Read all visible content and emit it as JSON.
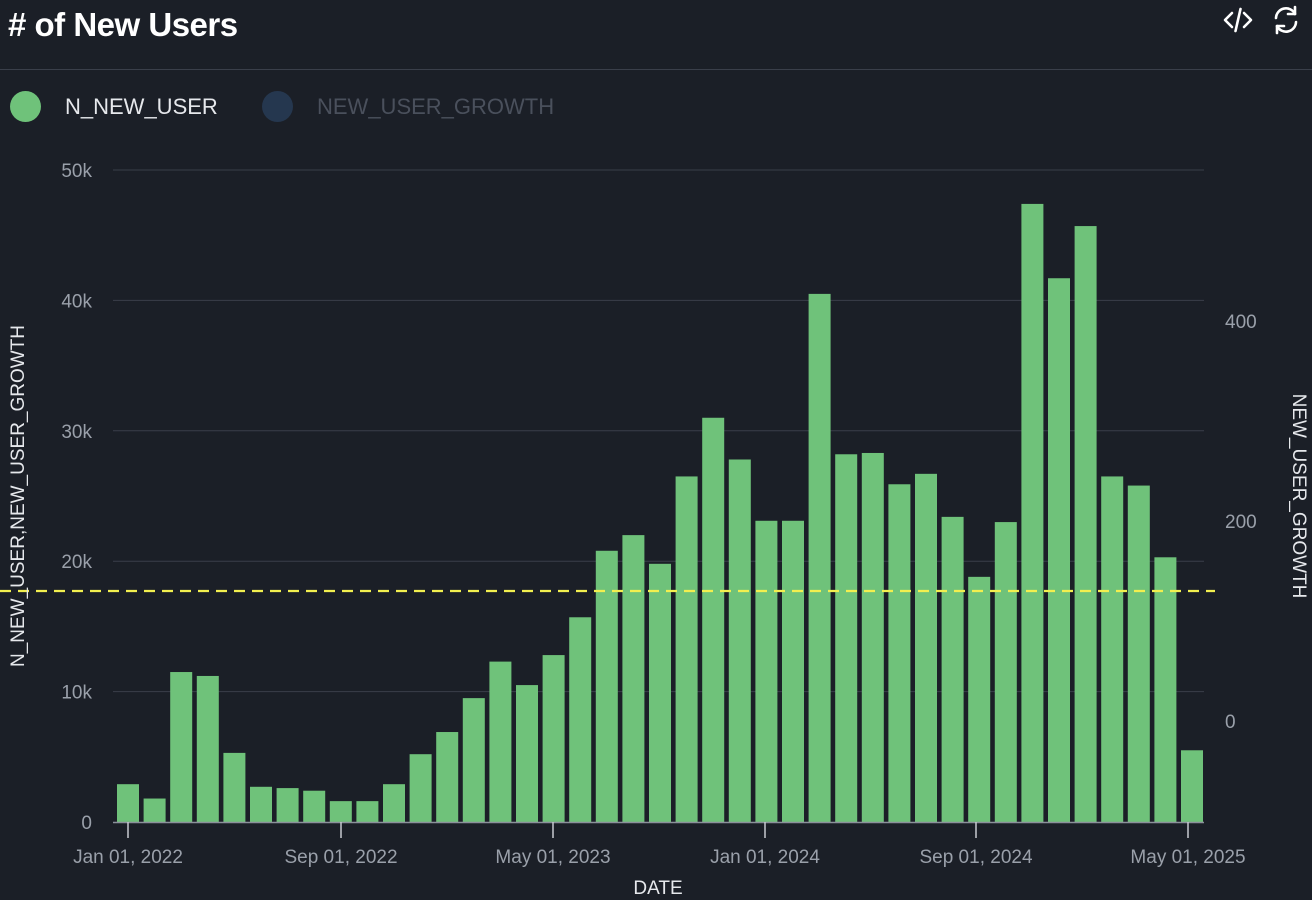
{
  "header": {
    "title": "# of New Users",
    "code_icon": "code-icon",
    "refresh_icon": "refresh-icon"
  },
  "legend": [
    {
      "label": "N_NEW_USER",
      "color": "#6fc27a",
      "text_color": "#e6e8ec"
    },
    {
      "label": "NEW_USER_GROWTH",
      "color": "#25374f",
      "text_color": "#4a505c"
    }
  ],
  "colors": {
    "background": "#1b1f27",
    "bar": "#6fc27a",
    "grid": "#3a3f4a",
    "reference_line": "#f2ef4f"
  },
  "chart_data": {
    "type": "bar",
    "xlabel": "DATE",
    "ylabel_left": "N_NEW_USER,NEW_USER_GROWTH",
    "ylabel_right": "NEW_USER_GROWTH",
    "left_axis": {
      "ylim": [
        0,
        50000
      ],
      "ticks": [
        0,
        10000,
        20000,
        30000,
        40000,
        50000
      ],
      "tick_labels": [
        "0",
        "10k",
        "20k",
        "30k",
        "40k",
        "50k"
      ]
    },
    "right_axis": {
      "ylim": [
        -101,
        551
      ],
      "ticks": [
        0,
        200,
        400
      ],
      "tick_labels": [
        "0",
        "200",
        "400"
      ]
    },
    "x_ticks": [
      "Jan 01, 2022",
      "Sep 01, 2022",
      "May 01, 2023",
      "Jan 01, 2024",
      "Sep 01, 2024",
      "May 01, 2025"
    ],
    "grid": "horizontal",
    "reference_line": {
      "axis": "right",
      "value": 130,
      "style": "dashed"
    },
    "series": [
      {
        "name": "N_NEW_USER",
        "axis": "left",
        "x": [
          "2022-01",
          "2022-02",
          "2022-03",
          "2022-04",
          "2022-05",
          "2022-06",
          "2022-07",
          "2022-08",
          "2022-09",
          "2022-10",
          "2022-11",
          "2022-12",
          "2023-01",
          "2023-02",
          "2023-03",
          "2023-04",
          "2023-05",
          "2023-06",
          "2023-07",
          "2023-08",
          "2023-09",
          "2023-10",
          "2023-11",
          "2023-12",
          "2024-01",
          "2024-02",
          "2024-03",
          "2024-04",
          "2024-05",
          "2024-06",
          "2024-07",
          "2024-08",
          "2024-09",
          "2024-10",
          "2024-11",
          "2024-12",
          "2025-01",
          "2025-02",
          "2025-03",
          "2025-04",
          "2025-05"
        ],
        "values": [
          2900,
          1800,
          11500,
          11200,
          5300,
          2700,
          2600,
          2400,
          1600,
          1600,
          2900,
          5200,
          6900,
          9500,
          12300,
          10500,
          12800,
          15700,
          20800,
          22000,
          19800,
          26500,
          31000,
          27800,
          23100,
          23100,
          40500,
          28200,
          28300,
          25900,
          26700,
          23400,
          18800,
          23000,
          47400,
          41700,
          45700,
          26500,
          25800,
          20300,
          5500
        ]
      },
      {
        "name": "NEW_USER_GROWTH",
        "axis": "right",
        "hidden": true,
        "values": []
      }
    ]
  }
}
